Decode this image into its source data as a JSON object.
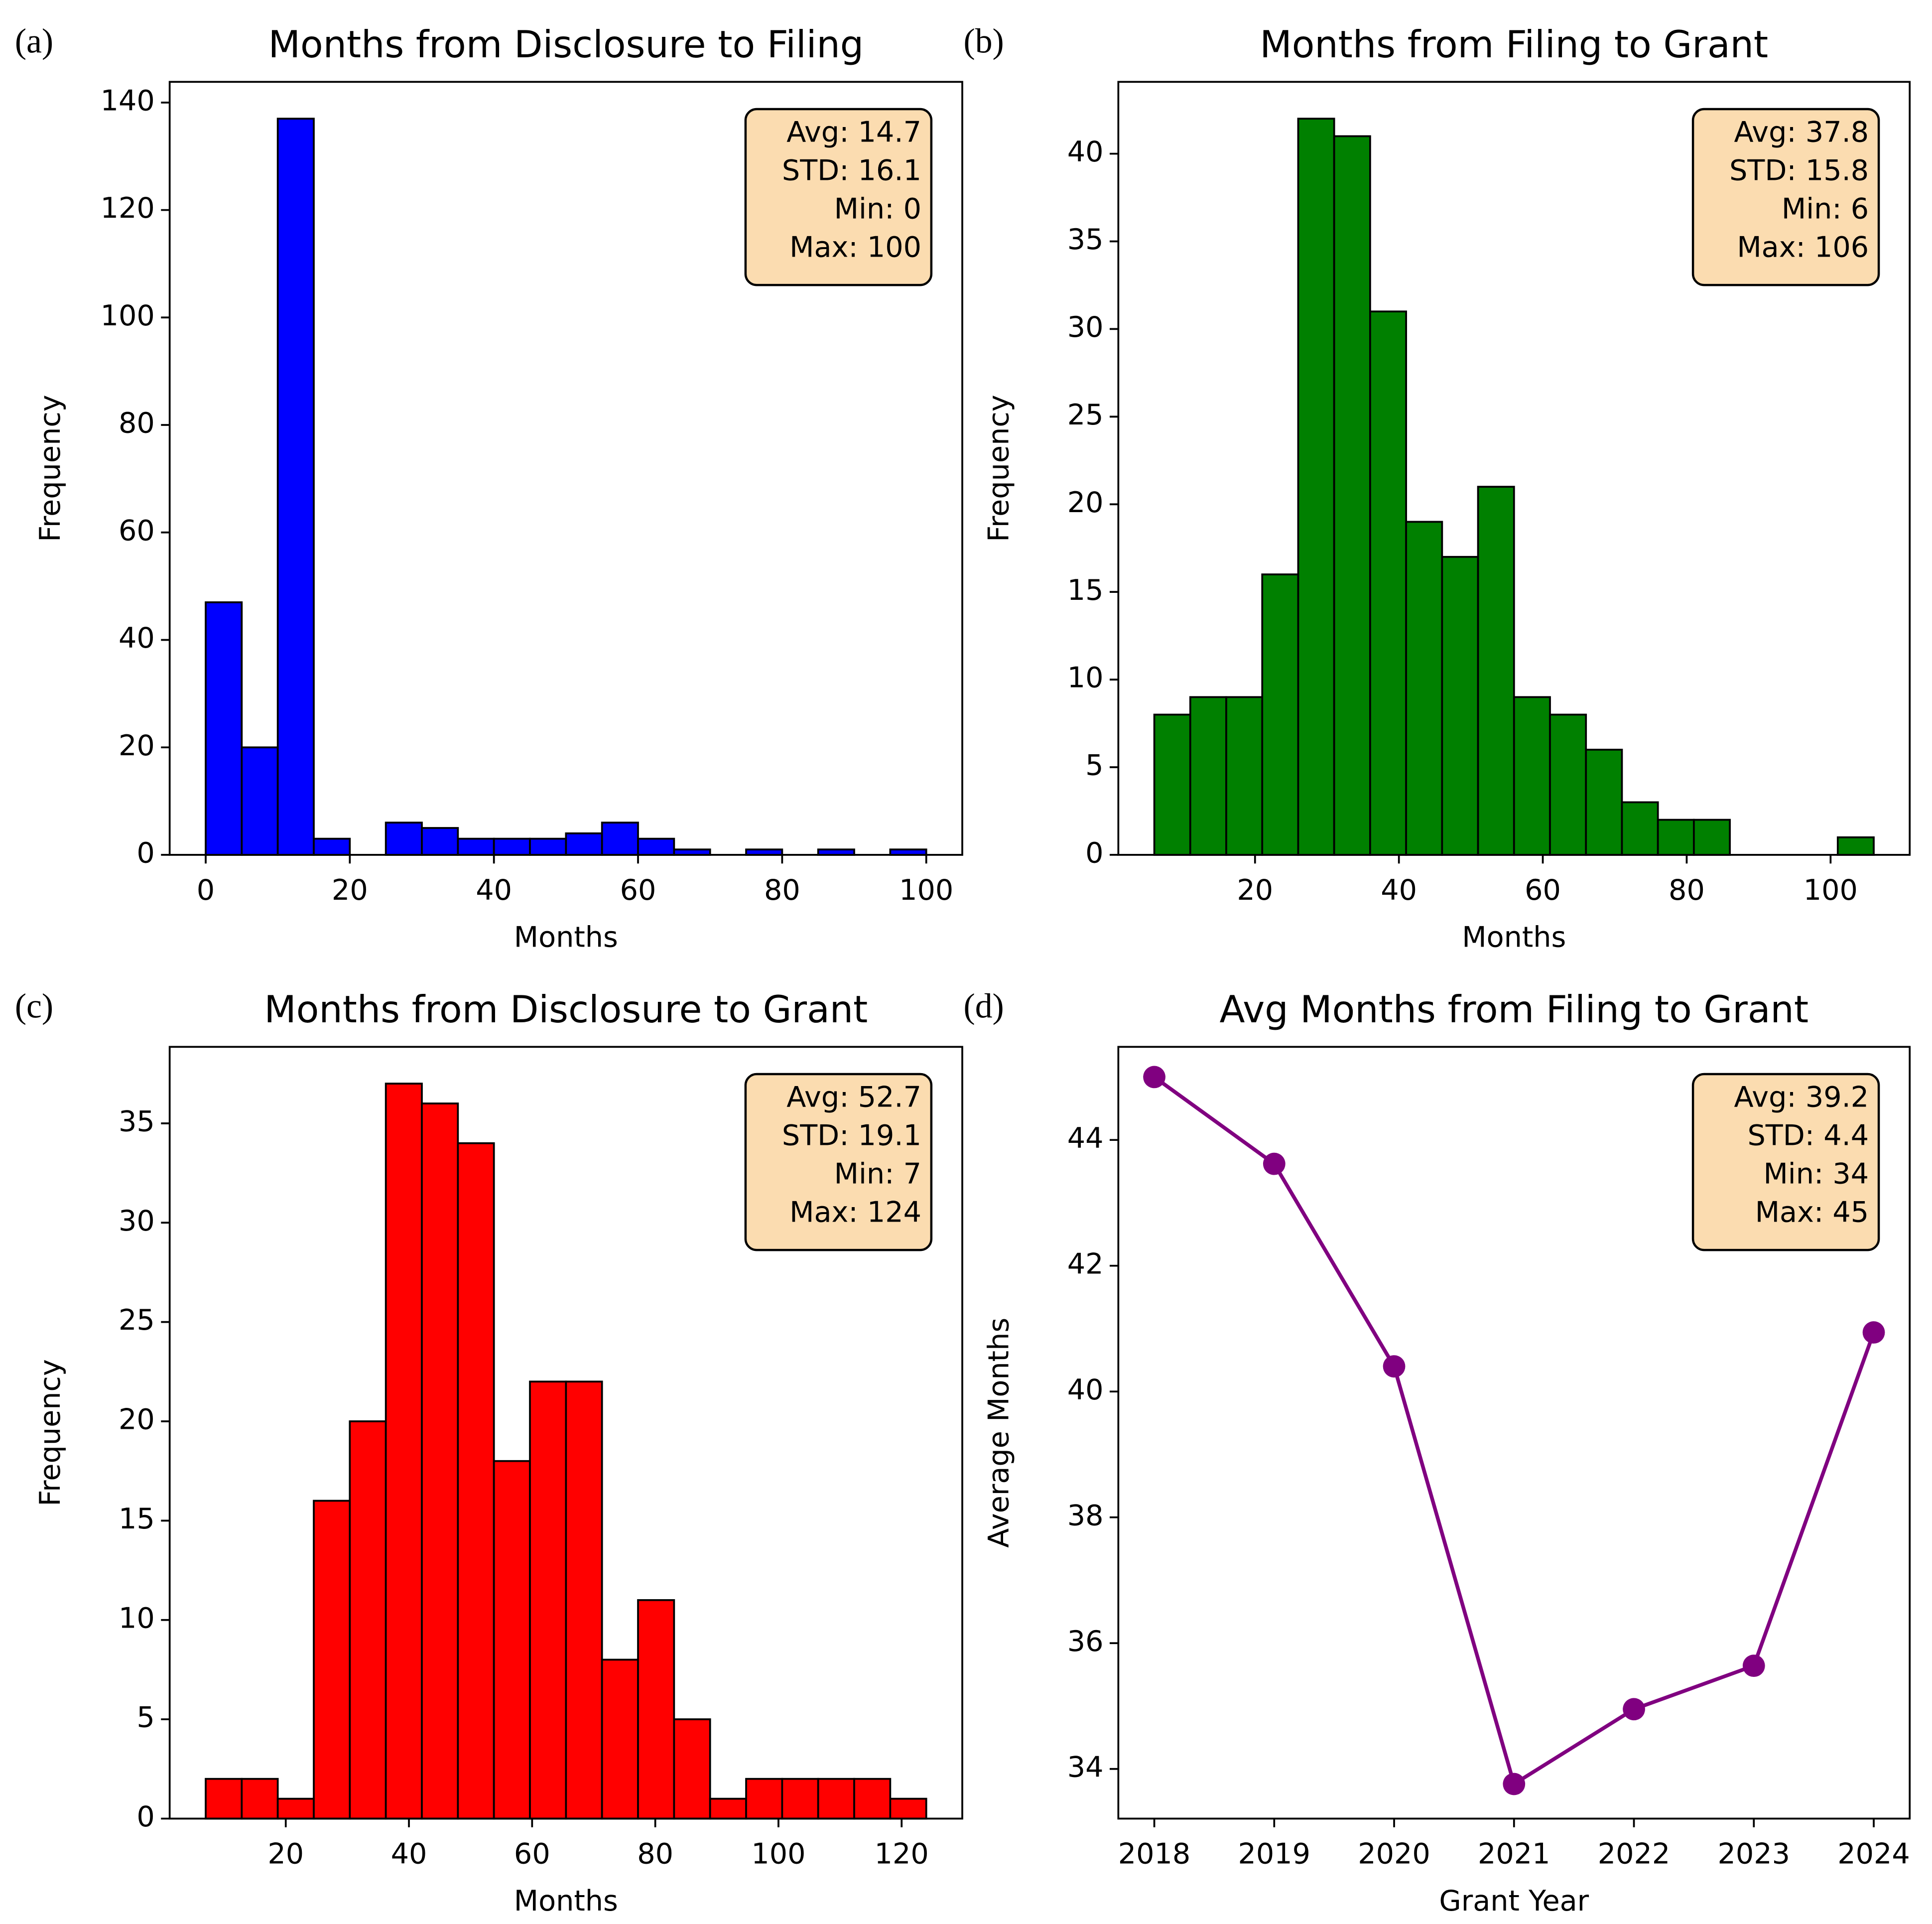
{
  "chart_data": [
    {
      "type": "histogram",
      "label": "(a)",
      "title": "Months from Disclosure to Filing",
      "xlabel": "Months",
      "ylabel": "Frequency",
      "stats": [
        "Avg: 14.7",
        "STD: 16.1",
        "Min: 0",
        "Max: 100"
      ],
      "bins": [
        0,
        5,
        10,
        15,
        20,
        25,
        30,
        35,
        40,
        45,
        50,
        55,
        60,
        65,
        70,
        75,
        80,
        85,
        90,
        95,
        100
      ],
      "values": [
        47,
        20,
        137,
        3,
        0,
        6,
        5,
        3,
        3,
        3,
        4,
        6,
        3,
        1,
        0,
        1,
        0,
        1,
        0,
        1
      ],
      "color": "#0000ff",
      "xlim": [
        -5,
        105
      ],
      "ylim": [
        0,
        143.85
      ],
      "xticks": [
        0,
        20,
        40,
        60,
        80,
        100
      ],
      "yticks": [
        0,
        20,
        40,
        60,
        80,
        100,
        120,
        140
      ]
    },
    {
      "type": "histogram",
      "label": "(b)",
      "title": "Months from Filing to Grant",
      "xlabel": "Months",
      "ylabel": "Frequency",
      "stats": [
        "Avg: 37.8",
        "STD: 15.8",
        "Min: 6",
        "Max: 106"
      ],
      "bins": [
        6,
        11,
        16,
        21,
        26,
        31,
        36,
        41,
        46,
        51,
        56,
        61,
        66,
        71,
        76,
        81,
        86,
        91,
        96,
        101,
        106
      ],
      "values": [
        8,
        9,
        9,
        16,
        42,
        41,
        31,
        19,
        17,
        21,
        9,
        8,
        6,
        3,
        2,
        2,
        0,
        0,
        0,
        1
      ],
      "color": "#008000",
      "xlim": [
        1,
        111
      ],
      "ylim": [
        0,
        44.1
      ],
      "xticks": [
        20,
        40,
        60,
        80,
        100
      ],
      "yticks": [
        0,
        5,
        10,
        15,
        20,
        25,
        30,
        35,
        40
      ]
    },
    {
      "type": "histogram",
      "label": "(c)",
      "title": "Months from Disclosure to Grant",
      "xlabel": "Months",
      "ylabel": "Frequency",
      "stats": [
        "Avg: 52.7",
        "STD: 19.1",
        "Min: 7",
        "Max: 124"
      ],
      "bins": [
        7,
        12.85,
        18.7,
        24.55,
        30.4,
        36.25,
        42.1,
        47.95,
        53.8,
        59.65,
        65.5,
        71.35,
        77.2,
        83.05,
        88.9,
        94.75,
        100.6,
        106.45,
        112.3,
        118.15,
        124
      ],
      "values": [
        2,
        2,
        1,
        16,
        20,
        37,
        36,
        34,
        18,
        22,
        22,
        8,
        11,
        5,
        1,
        2,
        2,
        2,
        2,
        1
      ],
      "color": "#ff0000",
      "xlim": [
        1.15,
        129.85
      ],
      "ylim": [
        0,
        38.85
      ],
      "xticks": [
        20,
        40,
        60,
        80,
        100,
        120
      ],
      "yticks": [
        0,
        5,
        10,
        15,
        20,
        25,
        30,
        35
      ]
    },
    {
      "type": "line",
      "label": "(d)",
      "title": "Avg Months from Filing to Grant",
      "xlabel": "Grant Year",
      "ylabel": "Average Months",
      "stats": [
        "Avg: 39.2",
        "STD: 4.4",
        "Min: 34",
        "Max: 45"
      ],
      "x": [
        2018,
        2019,
        2020,
        2021,
        2022,
        2023,
        2024
      ],
      "values": [
        45.0,
        43.62,
        40.4,
        33.76,
        34.95,
        35.64,
        40.94
      ],
      "color": "#800080",
      "xlim": [
        2017.7,
        2024.3
      ],
      "ylim": [
        33.21,
        45.48
      ],
      "xticks": [
        2018,
        2019,
        2020,
        2021,
        2022,
        2023,
        2024
      ],
      "yticks": [
        34,
        36,
        38,
        40,
        42,
        44
      ]
    }
  ]
}
